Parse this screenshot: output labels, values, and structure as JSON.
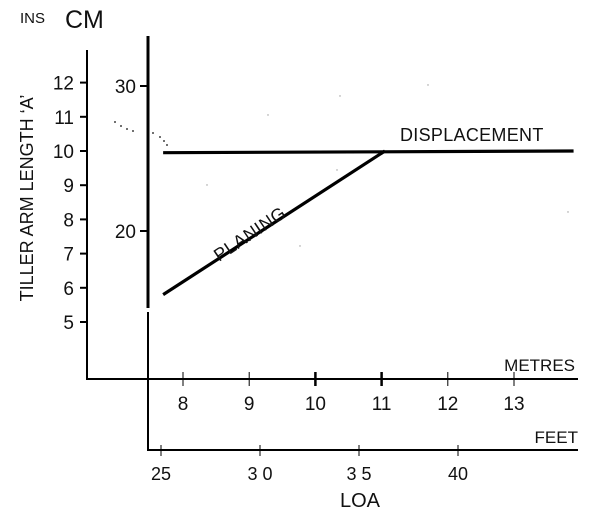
{
  "chart_data": {
    "type": "line",
    "ylabel": "TILLER ARM LENGTH ‘A’",
    "xlabel": "LOA",
    "y_units": {
      "inches": "INS",
      "centimetres": "CM"
    },
    "x_units": {
      "metres": "METRES",
      "feet": "FEET"
    },
    "y_inches_ticks": [
      12,
      11,
      10,
      9,
      8,
      7,
      6,
      5
    ],
    "y_cm_ticks": [
      30,
      20
    ],
    "x_metres_ticks": [
      8,
      9,
      10,
      11,
      12,
      13
    ],
    "x_feet_ticks": [
      25,
      30,
      35,
      40
    ],
    "y_inches_labels": [
      "12",
      "11",
      "10",
      "9",
      "8",
      "7",
      "6",
      "5"
    ],
    "y_cm_labels": [
      "30",
      "20"
    ],
    "x_metres_labels": [
      "8",
      "9",
      "10",
      "11",
      "12",
      "13"
    ],
    "x_feet_labels": [
      "25",
      "3 0",
      "3 5",
      "40"
    ],
    "series": [
      {
        "name": "PLANING",
        "x_metres": [
          7.7,
          11.05
        ],
        "y_inches": [
          5.8,
          10.0
        ]
      },
      {
        "name": "DISPLACEMENT",
        "x_metres": [
          7.7,
          13.9
        ],
        "y_inches": [
          9.95,
          10.0
        ]
      }
    ]
  }
}
